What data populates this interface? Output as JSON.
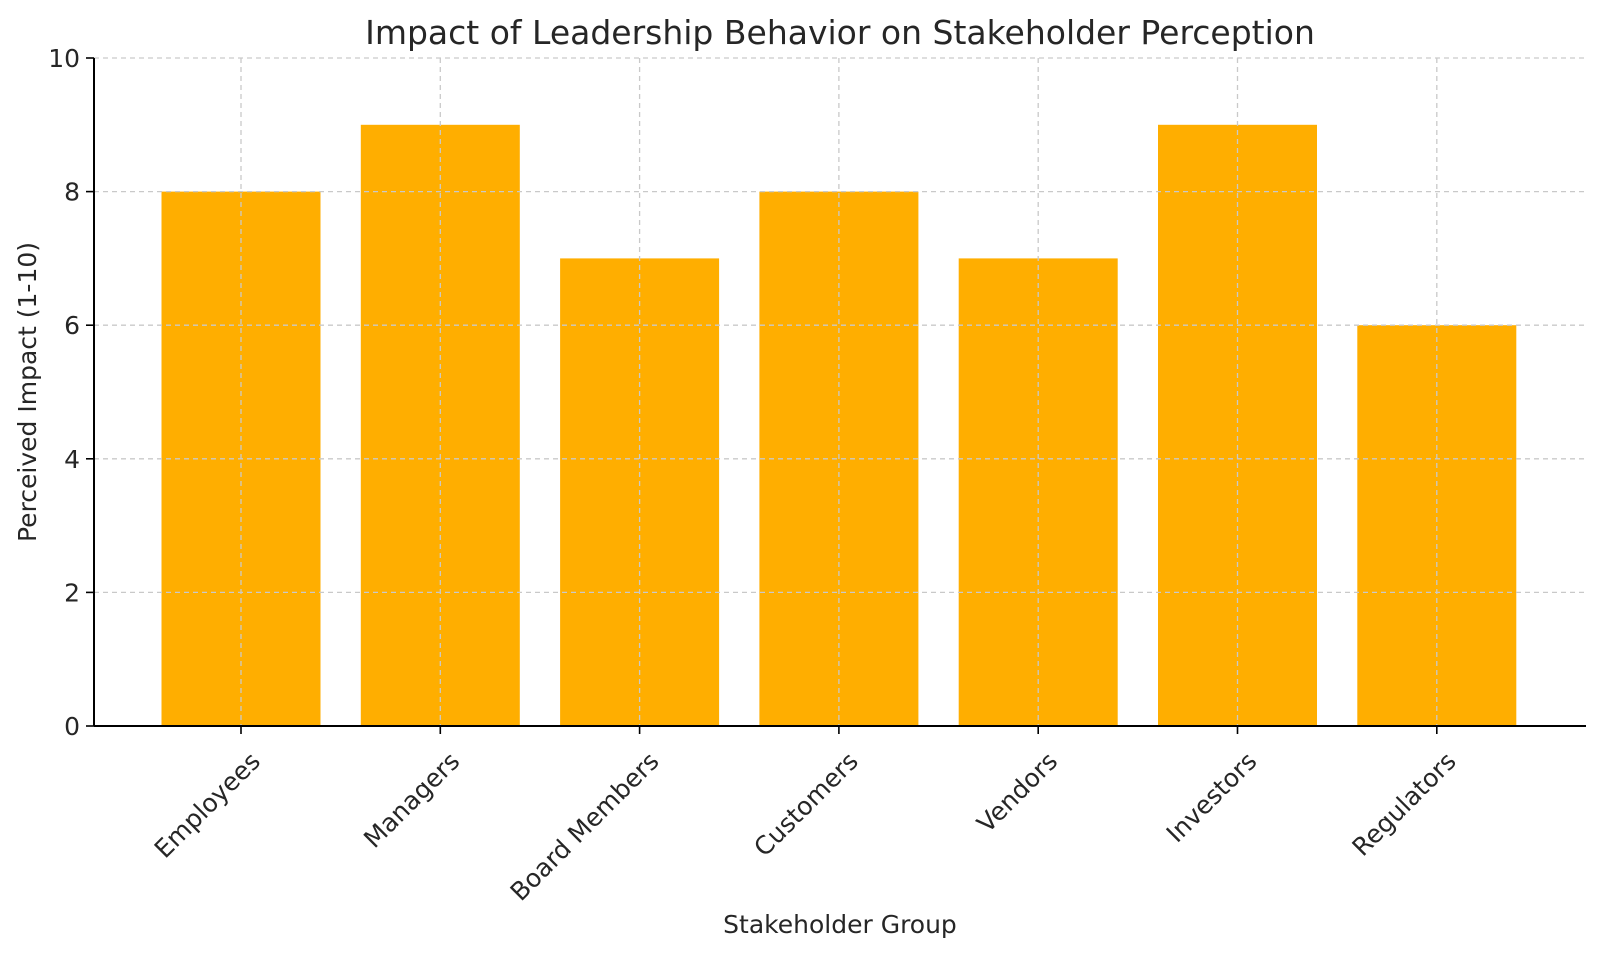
{
  "chart_data": {
    "type": "bar",
    "title": "Impact of Leadership Behavior on Stakeholder Perception",
    "xlabel": "Stakeholder Group",
    "ylabel": "Perceived Impact (1-10)",
    "categories": [
      "Employees",
      "Managers",
      "Board Members",
      "Customers",
      "Vendors",
      "Investors",
      "Regulators"
    ],
    "values": [
      8,
      9,
      7,
      8,
      7,
      9,
      6
    ],
    "ylim": [
      0,
      10
    ],
    "yticks": [
      0,
      2,
      4,
      6,
      8,
      10
    ],
    "grid": true,
    "legend": "none",
    "bar_color": "#FFAE00"
  }
}
